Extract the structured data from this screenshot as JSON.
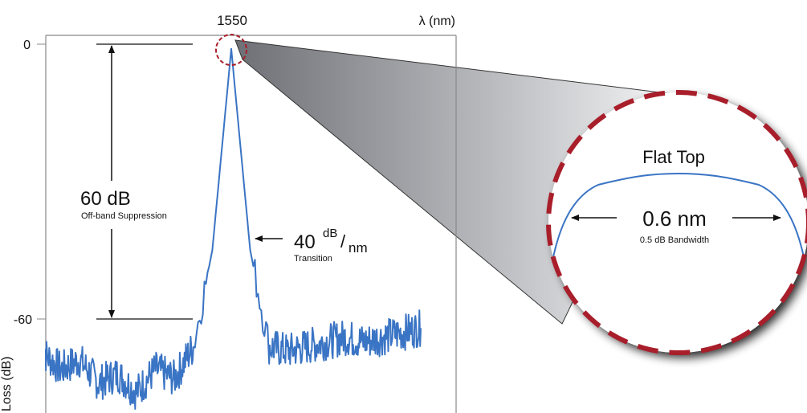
{
  "chart_data": {
    "type": "line",
    "title": "",
    "xlabel": "λ (nm)",
    "ylabel": "Loss (dB)",
    "x_ticks": [
      "1550"
    ],
    "y_ticks": [
      "0",
      "-60"
    ],
    "ylim": [
      -80,
      0
    ],
    "grid": false,
    "series": [
      {
        "x": [
          -1.0,
          -0.9,
          -0.8,
          -0.7,
          -0.6,
          -0.5,
          -0.4,
          -0.3,
          -0.2,
          -0.1,
          0.0,
          0.1,
          0.2,
          0.3,
          0.4,
          0.5,
          0.6,
          0.7,
          0.8,
          0.9,
          1.0
        ],
        "values": [
          -67,
          -71,
          -69,
          -74,
          -72,
          -76,
          -71,
          -73,
          -66,
          -45,
          -1,
          -45,
          -66,
          -67,
          -66,
          -65,
          -64,
          -65,
          -64,
          -63,
          -62
        ]
      }
    ],
    "annotations": {
      "suppression_value": "60 dB",
      "suppression_label": "Off-band Suppression",
      "transition_value": "40",
      "transition_unit_num": "dB",
      "transition_unit_den": "nm",
      "transition_slash": "/",
      "transition_label": "Transition",
      "zoom_title": "Flat Top",
      "bandwidth_value": "0.6 nm",
      "bandwidth_label": "0.5 dB Bandwidth"
    }
  },
  "colors": {
    "trace": "#3a74c4",
    "dash": "#a81e2a",
    "axis": "#888888",
    "text": "#111111"
  }
}
